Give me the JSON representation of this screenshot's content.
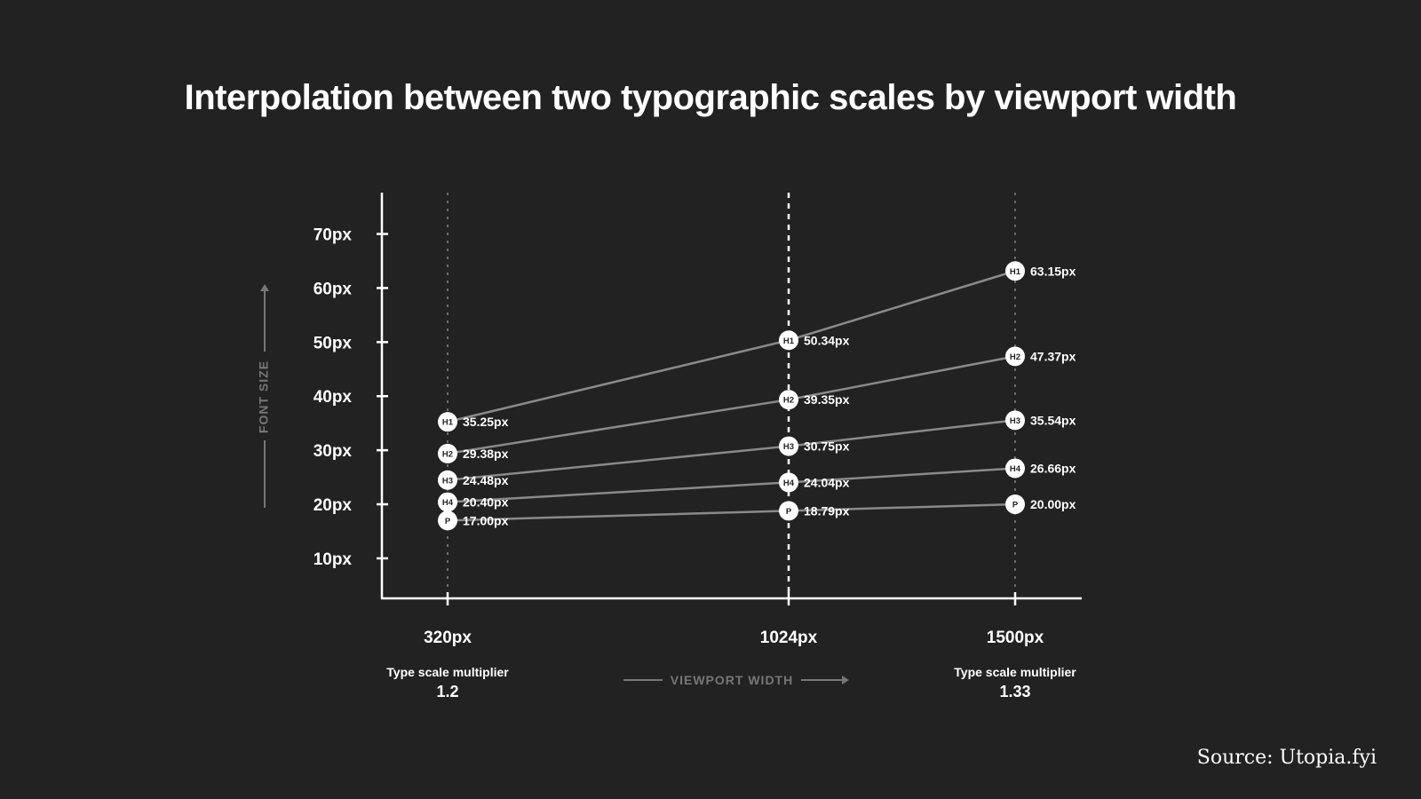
{
  "title": "Interpolation between two typographic scales by viewport width",
  "source": "Source: Utopia.fyi",
  "chart_data": {
    "type": "line",
    "xlabel": "VIEWPORT WIDTH",
    "ylabel": "FONT SIZE",
    "x": [
      320,
      1024,
      1500
    ],
    "x_tick_labels": [
      "320px",
      "1024px",
      "1500px"
    ],
    "y_ticks": [
      10,
      20,
      30,
      40,
      50,
      60,
      70
    ],
    "y_tick_labels": [
      "10px",
      "20px",
      "30px",
      "40px",
      "50px",
      "60px",
      "70px"
    ],
    "ylim": [
      0,
      75
    ],
    "grid": "dotted vertical lines at x ticks",
    "multipliers": [
      {
        "label": "Type scale multiplier",
        "value": "1.2"
      },
      {
        "label": "Type scale multiplier",
        "value": "1.33"
      }
    ],
    "series": [
      {
        "name": "H1",
        "values": [
          35.25,
          50.34,
          63.15
        ],
        "labels": [
          "35.25px",
          "50.34px",
          "63.15px"
        ]
      },
      {
        "name": "H2",
        "values": [
          29.38,
          39.35,
          47.37
        ],
        "labels": [
          "29.38px",
          "39.35px",
          "47.37px"
        ]
      },
      {
        "name": "H3",
        "values": [
          24.48,
          30.75,
          35.54
        ],
        "labels": [
          "24.48px",
          "30.75px",
          "35.54px"
        ]
      },
      {
        "name": "H4",
        "values": [
          20.4,
          24.04,
          26.66
        ],
        "labels": [
          "20.40px",
          "24.04px",
          "26.66px"
        ]
      },
      {
        "name": "P",
        "values": [
          17.0,
          18.79,
          20.0
        ],
        "labels": [
          "17.00px",
          "18.79px",
          "20.00px"
        ]
      }
    ],
    "colors": {
      "background": "#222222",
      "axis": "#ffffff",
      "line": "#8a8a8a",
      "marker": "#ffffff",
      "marker_text": "#222222",
      "muted": "#777777"
    }
  }
}
